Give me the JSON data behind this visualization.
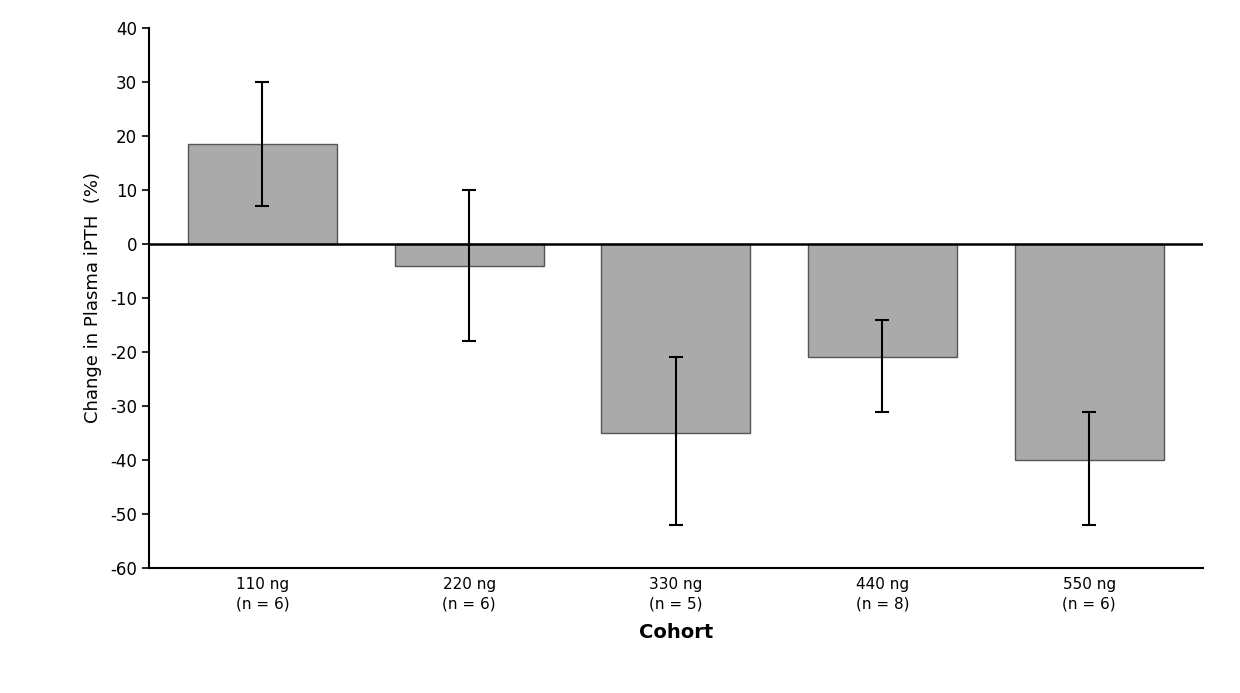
{
  "categories": [
    "110 ng\n(n = 6)",
    "220 ng\n(n = 6)",
    "330 ng\n(n = 5)",
    "440 ng\n(n = 8)",
    "550 ng\n(n = 6)"
  ],
  "values": [
    18.5,
    -4.0,
    -35.0,
    -21.0,
    -40.0
  ],
  "error_upper": [
    11.5,
    14.0,
    14.0,
    7.0,
    9.0
  ],
  "error_lower": [
    11.5,
    14.0,
    17.0,
    10.0,
    12.0
  ],
  "bar_color": "#aaaaaa",
  "bar_edgecolor": "#555555",
  "ylabel": "Change in Plasma iPTH  (%)",
  "xlabel": "Cohort",
  "ylim": [
    -60,
    40
  ],
  "yticks": [
    -60,
    -50,
    -40,
    -30,
    -20,
    -10,
    0,
    10,
    20,
    30,
    40
  ],
  "background_color": "#ffffff",
  "bar_width": 0.72,
  "capsize": 5,
  "hline_y": 0,
  "ylabel_fontsize": 13,
  "xlabel_fontsize": 14,
  "tick_fontsize": 12,
  "xtick_fontsize": 11
}
